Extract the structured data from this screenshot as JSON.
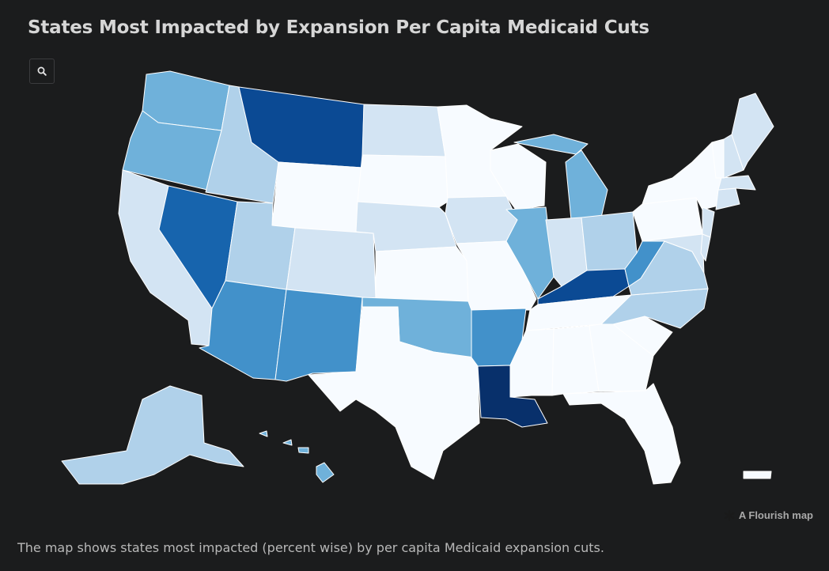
{
  "header": {
    "title": "States Most Impacted by Expansion Per Capita Medicaid Cuts"
  },
  "controls": {
    "search_icon": "search-icon"
  },
  "footer": {
    "credit": "A Flourish map",
    "credit_icon": "flourish-asterisk-icon",
    "caption": "The map shows states most impacted (percent wise) by per capita Medicaid expansion cuts."
  },
  "map_colors": {
    "level_0": "#f7fbff",
    "level_1": "#d3e4f3",
    "level_2": "#b0d1ea",
    "level_3": "#6fb1da",
    "level_4": "#4291ca",
    "level_5": "#1764ad",
    "level_6": "#0b4a94",
    "level_7": "#08306b"
  },
  "states": [
    {
      "id": "WA",
      "level": 3
    },
    {
      "id": "OR",
      "level": 3
    },
    {
      "id": "CA",
      "level": 1
    },
    {
      "id": "NV",
      "level": 5
    },
    {
      "id": "ID",
      "level": 2
    },
    {
      "id": "MT",
      "level": 6
    },
    {
      "id": "WY",
      "level": 0
    },
    {
      "id": "UT",
      "level": 2
    },
    {
      "id": "AZ",
      "level": 4
    },
    {
      "id": "CO",
      "level": 1
    },
    {
      "id": "NM",
      "level": 4
    },
    {
      "id": "ND",
      "level": 1
    },
    {
      "id": "SD",
      "level": 0
    },
    {
      "id": "NE",
      "level": 1
    },
    {
      "id": "KS",
      "level": 0
    },
    {
      "id": "OK",
      "level": 3
    },
    {
      "id": "TX",
      "level": 0
    },
    {
      "id": "MN",
      "level": 0
    },
    {
      "id": "IA",
      "level": 1
    },
    {
      "id": "MO",
      "level": 0
    },
    {
      "id": "AR",
      "level": 4
    },
    {
      "id": "LA",
      "level": 7
    },
    {
      "id": "WI",
      "level": 0
    },
    {
      "id": "IL",
      "level": 3
    },
    {
      "id": "MI",
      "level": 3
    },
    {
      "id": "IN",
      "level": 1
    },
    {
      "id": "OH",
      "level": 2
    },
    {
      "id": "KY",
      "level": 6
    },
    {
      "id": "TN",
      "level": 0
    },
    {
      "id": "MS",
      "level": 0
    },
    {
      "id": "AL",
      "level": 0
    },
    {
      "id": "GA",
      "level": 0
    },
    {
      "id": "FL",
      "level": 0
    },
    {
      "id": "SC",
      "level": 0
    },
    {
      "id": "NC",
      "level": 2
    },
    {
      "id": "VA",
      "level": 2
    },
    {
      "id": "WV",
      "level": 4
    },
    {
      "id": "PA",
      "level": 0
    },
    {
      "id": "NY",
      "level": 0
    },
    {
      "id": "VT",
      "level": 0
    },
    {
      "id": "NH",
      "level": 1
    },
    {
      "id": "ME",
      "level": 1
    },
    {
      "id": "MA",
      "level": 1
    },
    {
      "id": "CT",
      "level": 1
    },
    {
      "id": "NJ",
      "level": 1
    },
    {
      "id": "MD",
      "level": 1
    },
    {
      "id": "DE",
      "level": 1
    },
    {
      "id": "AK",
      "level": 2
    },
    {
      "id": "HI",
      "level": 3
    },
    {
      "id": "PR",
      "level": 0
    }
  ]
}
